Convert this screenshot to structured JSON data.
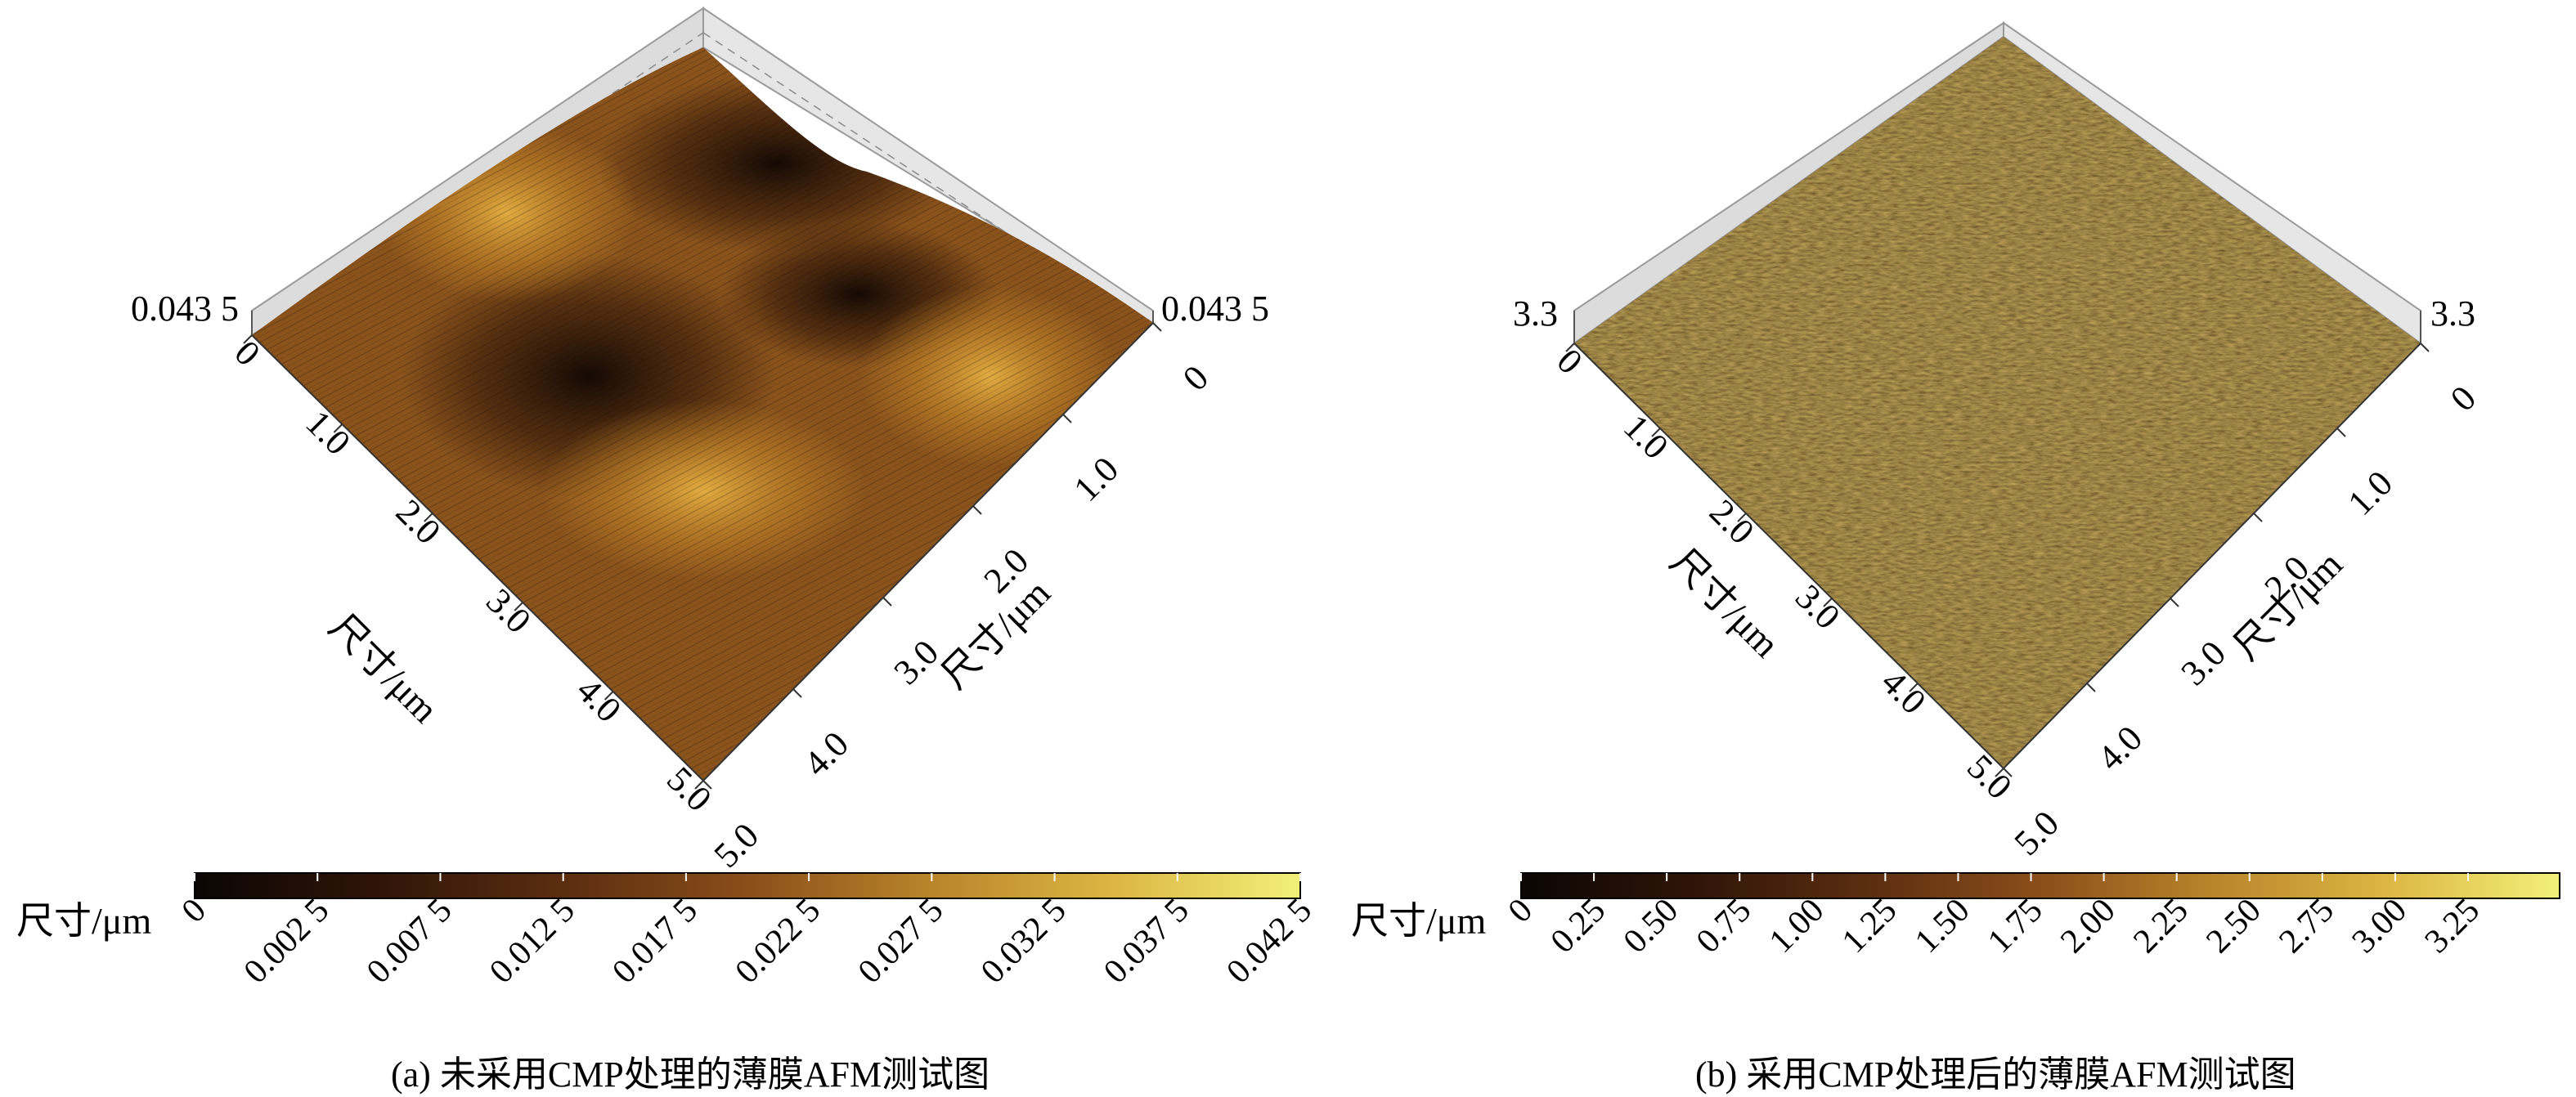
{
  "panels": [
    {
      "id": "a",
      "caption": "(a) 未采用CMP处理的薄膜AFM测试图",
      "z_max_label": "0.043 5",
      "axis_ticks": [
        "0",
        "1.0",
        "2.0",
        "3.0",
        "4.0",
        "5.0"
      ],
      "axis_label": "尺寸/μm",
      "colorbar_label": "尺寸/μm",
      "colorbar_ticks": [
        "0",
        "0.002 5",
        "0.007 5",
        "0.012 5",
        "0.017 5",
        "0.022 5",
        "0.027 5",
        "0.032 5",
        "0.037 5",
        "0.042 5"
      ],
      "surface": "smooth-wavy"
    },
    {
      "id": "b",
      "caption": "(b) 采用CMP处理后的薄膜AFM测试图",
      "z_max_label": "3.3",
      "axis_ticks": [
        "0",
        "1.0",
        "2.0",
        "3.0",
        "4.0",
        "5.0"
      ],
      "axis_label": "尺寸/μm",
      "colorbar_label": "尺寸/μm",
      "colorbar_ticks": [
        "0",
        "0.25",
        "0.50",
        "0.75",
        "1.00",
        "1.25",
        "1.50",
        "1.75",
        "2.00",
        "2.25",
        "2.50",
        "2.75",
        "3.00",
        "3.25"
      ],
      "surface": "rough-grainy"
    }
  ],
  "colors": {
    "cmap": [
      "#0b0604",
      "#2e1408",
      "#5a2d10",
      "#8a4e1a",
      "#b7832a",
      "#dcb543",
      "#f2f07a"
    ],
    "box_line": "#9a9a9a",
    "box_fill": "#d9d9d9"
  }
}
